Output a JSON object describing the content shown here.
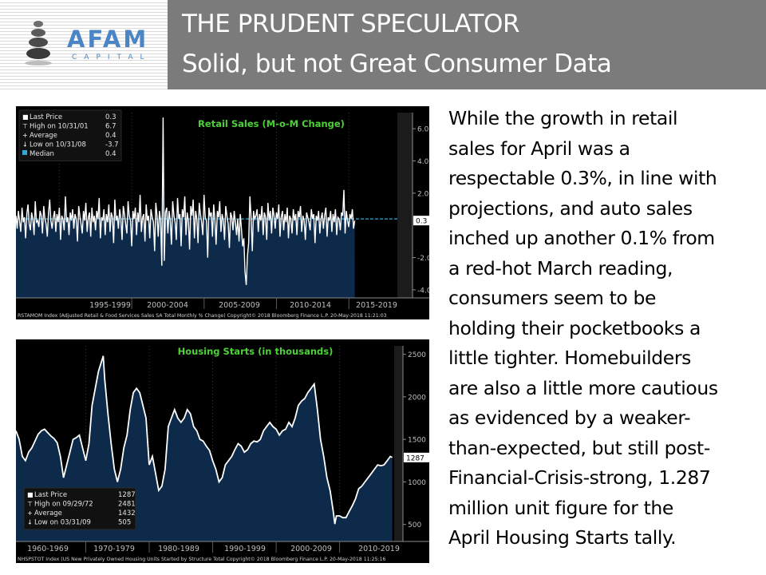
{
  "header": {
    "title_line1": "THE PRUDENT SPECULATOR",
    "title_line2": "Solid, but not Great Consumer Data",
    "logo_text": "AFAM",
    "logo_subtext": "CAPITAL"
  },
  "body_text_lines": [
    "While the growth in retail",
    "sales for April was a",
    "respectable 0.3%, in line with",
    "projections, and auto sales",
    "inched up another 0.1% from",
    "a red-hot March reading,",
    "consumers seem to be",
    "holding their pocketbooks a",
    "little tighter. Homebuilders",
    "are also a little more cautious",
    "as evidenced by a weaker-",
    "than-expected, but still post-",
    "Financial-Crisis-strong, 1.287",
    "million unit figure for the",
    "April Housing Starts tally."
  ],
  "colors": {
    "title_band": "#7b7b7b",
    "logo_blue": "#4a86c5",
    "chart_bg": "#000000",
    "chart_fill": "#0d2a4a",
    "chart_line": "#ffffff",
    "chart_title_green": "#4cd137",
    "median_cyan": "#35a7d6",
    "axis_text": "#bfbfbf"
  },
  "chart_data": [
    {
      "type": "line",
      "title": "Retail Sales (M-o-M Change)",
      "ylim": [
        -4.5,
        7.0
      ],
      "y_ticks": [
        "6.0",
        "4.0",
        "2.0",
        "-2.0",
        "-4.0"
      ],
      "x_labels": [
        "1995-1999",
        "2000-2004",
        "2005-2009",
        "2010-2014",
        "2015-2019"
      ],
      "legend": {
        "rows": [
          {
            "icon": "■",
            "label": "Last Price",
            "value": "0.3"
          },
          {
            "icon": "⊤",
            "label": "High on 10/31/01",
            "value": "6.7"
          },
          {
            "icon": "+",
            "label": "Average",
            "value": "0.4"
          },
          {
            "icon": "↓",
            "label": "Low on 10/31/08",
            "value": "-3.7"
          }
        ],
        "median": {
          "label": "Median",
          "value": "0.4"
        }
      },
      "last_value_label": "0.3",
      "median_value": 0.4,
      "series": [
        {
          "x_start": 1992.0,
          "x_step": 0.0833,
          "values": [
            0.6,
            -0.2,
            0.9,
            0.3,
            -0.4,
            1.1,
            0.2,
            0.5,
            -0.8,
            0.7,
            1.3,
            0.1,
            -0.3,
            0.8,
            0.4,
            -0.6,
            1.5,
            0.2,
            0.3,
            -0.1,
            0.9,
            0.6,
            -0.5,
            1.2,
            0.4,
            0.1,
            -0.7,
            0.8,
            1.6,
            0.3,
            -0.2,
            0.5,
            0.9,
            -0.4,
            0.7,
            0.2,
            1.1,
            -0.9,
            0.6,
            0.4,
            -0.3,
            1.8,
            0.2,
            0.5,
            -0.6,
            0.8,
            0.3,
            1.0,
            -0.2,
            0.7,
            0.4,
            -1.0,
            1.2,
            0.6,
            0.1,
            -0.5,
            0.9,
            0.3,
            1.4,
            -0.4,
            0.5,
            0.8,
            -0.7,
            1.1,
            0.2,
            0.6,
            -0.3,
            0.9,
            0.4,
            1.7,
            -0.8,
            0.5,
            0.3,
            1.0,
            -0.6,
            0.7,
            0.2,
            1.3,
            -0.4,
            0.8,
            0.5,
            -1.1,
            1.6,
            0.3,
            0.6,
            -0.2,
            1.0,
            0.4,
            -0.9,
            1.2,
            0.7,
            0.1,
            -0.5,
            1.5,
            0.6,
            0.3,
            -1.3,
            0.9,
            0.4,
            1.1,
            -0.6,
            0.8,
            0.2,
            1.9,
            -0.4,
            0.5,
            0.7,
            -1.0,
            1.3,
            0.3,
            0.6,
            -0.8,
            1.0,
            0.5,
            0.2,
            -1.6,
            1.4,
            0.6,
            -0.7,
            0.9,
            0.3,
            -2.5,
            6.7,
            -2.2,
            0.8,
            1.1,
            -0.5,
            0.9,
            0.3,
            -1.2,
            1.5,
            0.6,
            0.2,
            -0.9,
            1.7,
            0.4,
            0.7,
            -1.3,
            1.0,
            0.5,
            1.8,
            -0.6,
            0.8,
            0.3,
            -1.5,
            1.2,
            0.6,
            1.6,
            -0.8,
            0.9,
            0.4,
            -1.1,
            1.4,
            0.7,
            0.2,
            -0.6,
            1.9,
            0.5,
            0.3,
            -2.0,
            1.1,
            0.6,
            0.8,
            -0.7,
            1.3,
            0.4,
            -1.2,
            0.9,
            0.5,
            1.5,
            -0.4,
            0.7,
            0.3,
            -0.9,
            1.2,
            0.6,
            0.1,
            -1.4,
            0.8,
            0.5,
            -0.3,
            0.9,
            0.2,
            -0.6,
            0.4,
            -1.0,
            0.7,
            -0.2,
            -1.3,
            -0.8,
            -2.9,
            -3.7,
            -1.9,
            -1.1,
            1.8,
            0.5,
            -1.6,
            0.9,
            0.4,
            0.6,
            1.0,
            -0.4,
            0.7,
            0.3,
            1.2,
            -0.6,
            0.8,
            0.5,
            -0.9,
            1.4,
            0.3,
            0.9,
            -0.5,
            1.1,
            0.6,
            -0.2,
            0.8,
            0.4,
            1.3,
            -0.7,
            0.5,
            0.9,
            -0.3,
            0.7,
            0.2,
            1.1,
            -0.8,
            0.6,
            0.4,
            -0.5,
            1.0,
            0.3,
            0.7,
            -0.6,
            0.9,
            0.5,
            1.2,
            -0.4,
            0.6,
            0.3,
            -0.9,
            0.8,
            0.5,
            0.2,
            -0.3,
            1.0,
            0.4,
            0.7,
            -1.1,
            0.6,
            0.3,
            0.9,
            -0.5,
            0.4,
            0.8,
            -0.2,
            0.6,
            1.1,
            -0.7,
            0.5,
            0.3,
            0.9,
            -0.4,
            0.7,
            0.2,
            1.0,
            -0.6,
            0.5,
            0.4,
            -0.3,
            0.8,
            0.6,
            2.2,
            -0.5,
            0.9,
            0.3,
            -0.1,
            0.7,
            0.4,
            1.0,
            -0.2,
            0.3
          ]
        }
      ],
      "footer": "RSTAMOM Index (Adjusted Retail & Food Services Sales SA Total Monthly % Change)  Copyright© 2018 Bloomberg Finance L.P.    20-May-2018 11:21:03"
    },
    {
      "type": "area",
      "title": "Housing Starts (in thousands)",
      "ylim": [
        300,
        2600
      ],
      "y_ticks": [
        "2500",
        "2000",
        "1500",
        "1000",
        "500"
      ],
      "x_labels": [
        "1960-1969",
        "1970-1979",
        "1980-1989",
        "1990-1999",
        "2000-2009",
        "2010-2019"
      ],
      "legend": {
        "rows": [
          {
            "icon": "■",
            "label": "Last Price",
            "value": "1287"
          },
          {
            "icon": "⊤",
            "label": "High on 09/29/72",
            "value": "2481"
          },
          {
            "icon": "+",
            "label": "Average",
            "value": "1432"
          },
          {
            "icon": "↓",
            "label": "Low on 03/31/09",
            "value": "505"
          }
        ]
      },
      "last_value_label": "1287",
      "series": [
        {
          "x": [
            1959.0,
            1959.5,
            1960.0,
            1960.5,
            1961.0,
            1961.5,
            1962.0,
            1962.5,
            1963.0,
            1963.5,
            1964.0,
            1964.5,
            1965.0,
            1965.5,
            1966.0,
            1966.5,
            1967.0,
            1967.5,
            1968.0,
            1968.5,
            1969.0,
            1969.5,
            1970.0,
            1970.5,
            1971.0,
            1971.5,
            1972.0,
            1972.5,
            1972.75,
            1973.0,
            1973.5,
            1974.0,
            1974.5,
            1975.0,
            1975.5,
            1976.0,
            1976.5,
            1977.0,
            1977.5,
            1978.0,
            1978.5,
            1979.0,
            1979.5,
            1980.0,
            1980.5,
            1981.0,
            1981.5,
            1982.0,
            1982.5,
            1983.0,
            1983.5,
            1984.0,
            1984.5,
            1985.0,
            1985.5,
            1986.0,
            1986.5,
            1987.0,
            1987.5,
            1988.0,
            1988.5,
            1989.0,
            1989.5,
            1990.0,
            1990.5,
            1991.0,
            1991.5,
            1992.0,
            1992.5,
            1993.0,
            1993.5,
            1994.0,
            1994.5,
            1995.0,
            1995.5,
            1996.0,
            1996.5,
            1997.0,
            1997.5,
            1998.0,
            1998.5,
            1999.0,
            1999.5,
            2000.0,
            2000.5,
            2001.0,
            2001.5,
            2002.0,
            2002.5,
            2003.0,
            2003.5,
            2004.0,
            2004.5,
            2005.0,
            2005.5,
            2006.0,
            2006.5,
            2007.0,
            2007.5,
            2008.0,
            2008.5,
            2009.0,
            2009.25,
            2009.5,
            2010.0,
            2010.5,
            2011.0,
            2011.5,
            2012.0,
            2012.5,
            2013.0,
            2013.5,
            2014.0,
            2014.5,
            2015.0,
            2015.5,
            2016.0,
            2016.5,
            2017.0,
            2017.5,
            2018.0,
            2018.3
          ],
          "values": [
            1600,
            1500,
            1300,
            1250,
            1350,
            1400,
            1480,
            1560,
            1600,
            1620,
            1580,
            1540,
            1510,
            1460,
            1300,
            1050,
            1200,
            1350,
            1500,
            1520,
            1550,
            1400,
            1250,
            1450,
            1900,
            2100,
            2300,
            2420,
            2481,
            2200,
            1800,
            1450,
            1150,
            1000,
            1150,
            1400,
            1550,
            1850,
            2050,
            2100,
            2050,
            1900,
            1750,
            1200,
            1300,
            1100,
            900,
            950,
            1150,
            1650,
            1750,
            1850,
            1750,
            1700,
            1750,
            1850,
            1800,
            1650,
            1600,
            1500,
            1480,
            1420,
            1370,
            1250,
            1150,
            1000,
            1050,
            1200,
            1250,
            1300,
            1380,
            1450,
            1420,
            1350,
            1380,
            1450,
            1480,
            1470,
            1500,
            1600,
            1650,
            1700,
            1650,
            1620,
            1550,
            1600,
            1620,
            1700,
            1650,
            1750,
            1900,
            1950,
            1980,
            2050,
            2100,
            2150,
            1850,
            1500,
            1300,
            1050,
            900,
            650,
            505,
            600,
            600,
            580,
            580,
            650,
            720,
            800,
            920,
            950,
            1000,
            1050,
            1100,
            1150,
            1200,
            1190,
            1200,
            1250,
            1300,
            1287
          ]
        }
      ],
      "footer": "NHSPSTOT Index (US New Privately Owned Housing Units Started by Structure Total  Copyright© 2018 Bloomberg Finance L.P.   20-May-2018 11:25:16"
    }
  ]
}
